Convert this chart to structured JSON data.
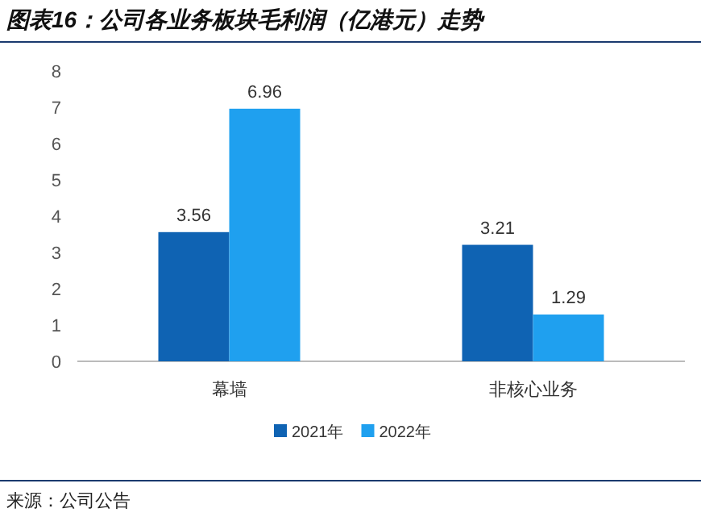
{
  "chart_data": {
    "type": "bar",
    "title": "图表16：公司各业务板块毛利润（亿港元）走势",
    "categories": [
      "幕墙",
      "非核心业务"
    ],
    "series": [
      {
        "name": "2021年",
        "color": "#0f63b3",
        "values": [
          3.56,
          3.21
        ]
      },
      {
        "name": "2022年",
        "color": "#1fa0ef",
        "values": [
          6.96,
          1.29
        ]
      }
    ],
    "ylim": [
      0,
      8
    ],
    "yticks": [
      0,
      1,
      2,
      3,
      4,
      5,
      6,
      7,
      8
    ],
    "grid": false,
    "legend": "bottom",
    "data_labels": true,
    "annotations": [
      "来源：公司公告"
    ]
  }
}
